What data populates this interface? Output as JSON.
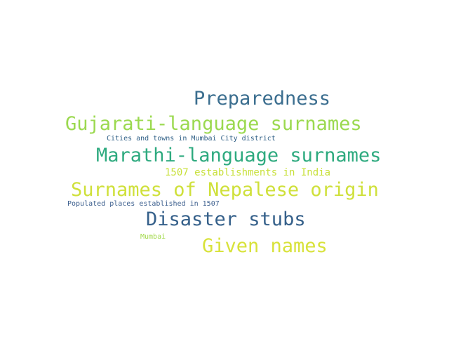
{
  "words": [
    {
      "text": "Preparedness",
      "color": "#3b6e8f"
    },
    {
      "text": "Gujarati-language surnames",
      "color": "#9bd94f"
    },
    {
      "text": "Cities and towns in Mumbai City district",
      "color": "#2f5f86"
    },
    {
      "text": "Marathi-language surnames",
      "color": "#2eaa7f"
    },
    {
      "text": "1507 establishments in India",
      "color": "#c8e03a"
    },
    {
      "text": "Surnames of Nepalese origin",
      "color": "#cfe03a"
    },
    {
      "text": "Populated places established in 1507",
      "color": "#3c5f8e"
    },
    {
      "text": "Disaster stubs",
      "color": "#35608a"
    },
    {
      "text": "Mumbai",
      "color": "#a5da4f"
    },
    {
      "text": "Given names",
      "color": "#d8e23a"
    }
  ]
}
